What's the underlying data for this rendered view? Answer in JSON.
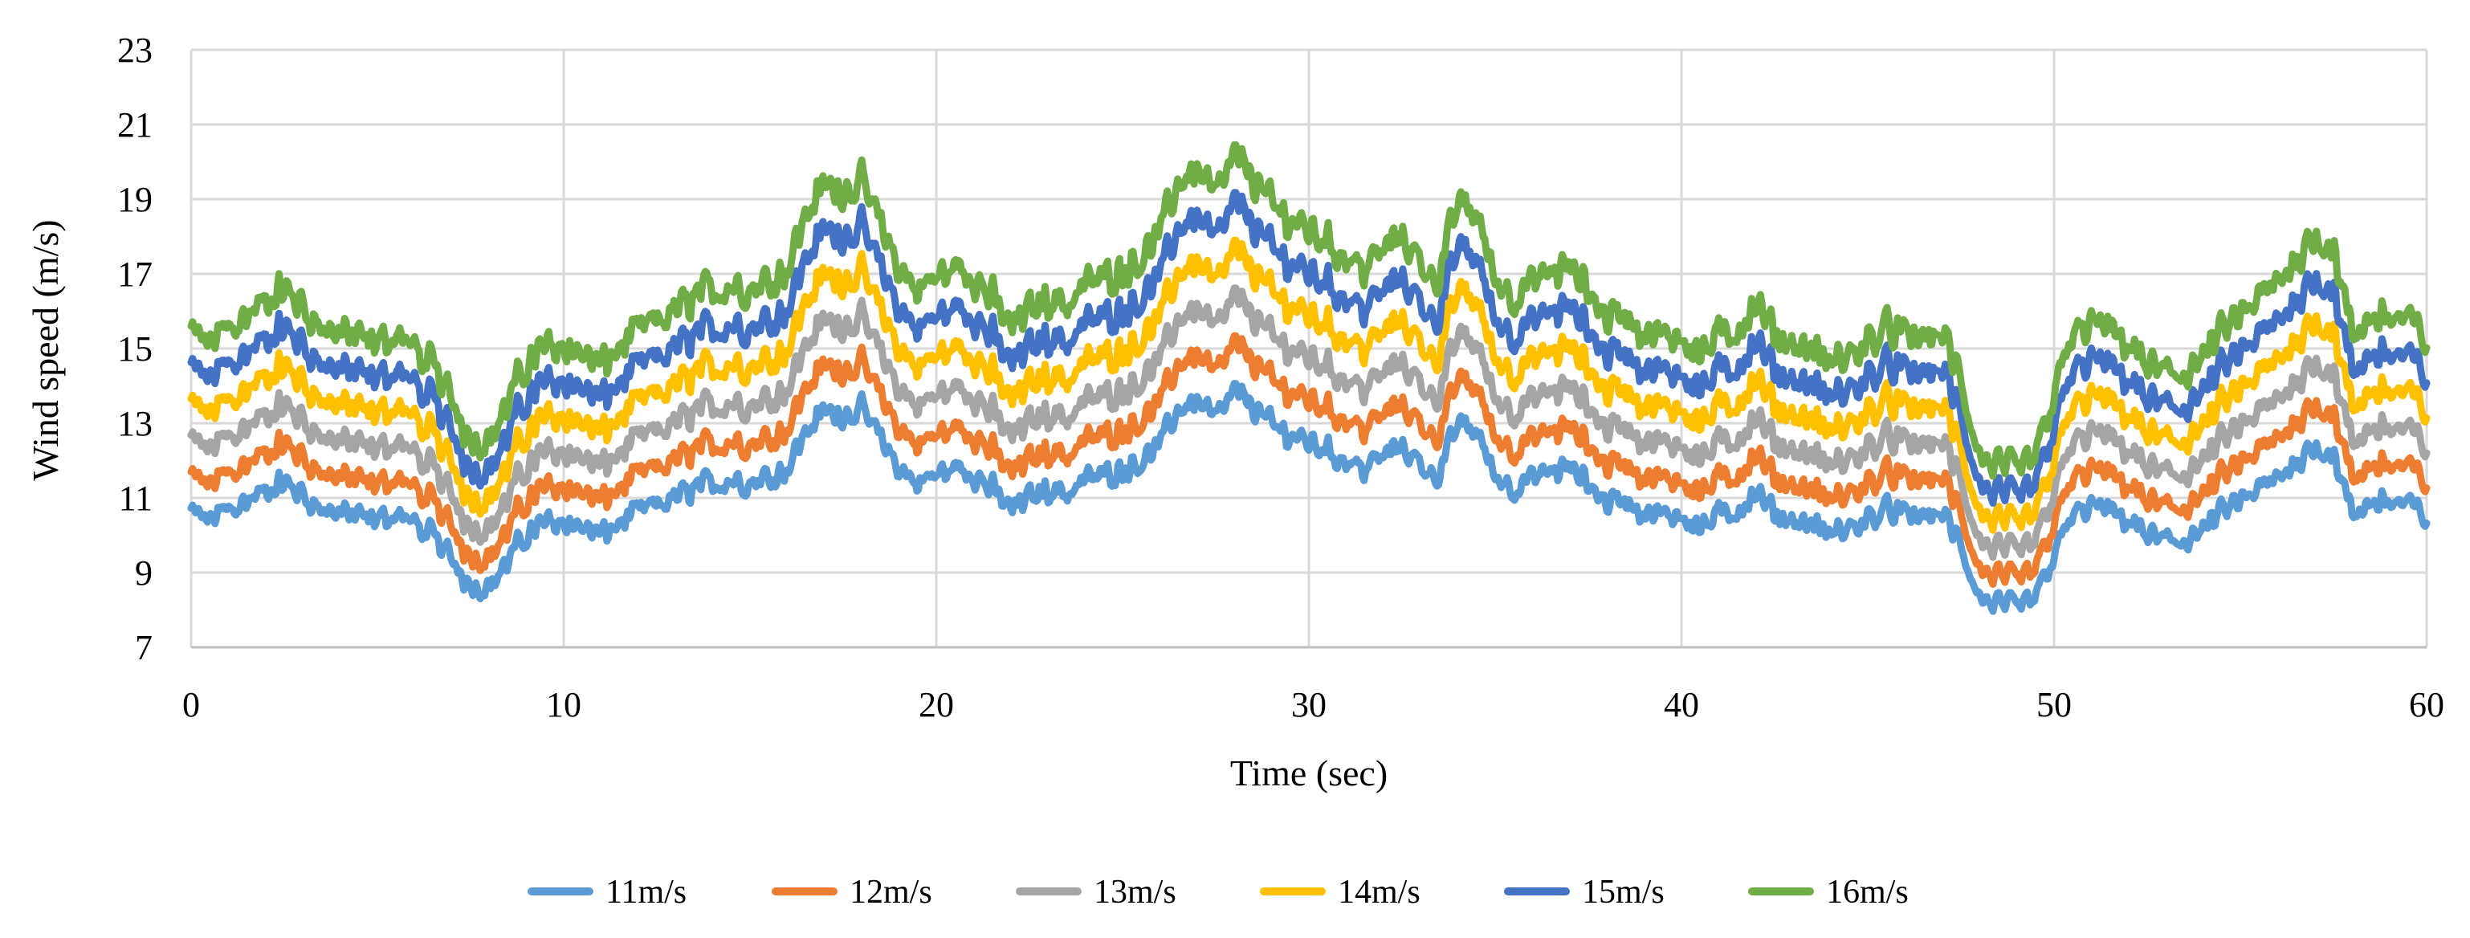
{
  "chart_data": {
    "type": "line",
    "title": "",
    "xlabel": "Time (sec)",
    "ylabel": "Wind speed (m/s)",
    "xlim": [
      0,
      60
    ],
    "ylim": [
      7,
      23
    ],
    "xticks": [
      "0",
      "10",
      "20",
      "30",
      "40",
      "50",
      "60"
    ],
    "yticks": [
      "7",
      "9",
      "11",
      "13",
      "15",
      "17",
      "19",
      "21",
      "23"
    ],
    "grid": true,
    "legend_position": "bottom",
    "base_profile": {
      "description": "mean wind speed of the 11m/s series; other series scale this profile by mean_speed/11",
      "x": [
        0,
        0.5,
        1,
        1.5,
        2,
        2.5,
        3,
        3.5,
        4,
        4.5,
        5,
        5.5,
        6,
        6.5,
        7,
        7.5,
        8,
        8.5,
        9,
        9.5,
        10,
        10.5,
        11,
        11.5,
        12,
        12.5,
        13,
        13.5,
        14,
        14.5,
        15,
        15.5,
        16,
        16.5,
        17,
        17.5,
        18,
        18.5,
        19,
        19.5,
        20,
        20.5,
        21,
        21.5,
        22,
        22.5,
        23,
        23.5,
        24,
        24.5,
        25,
        25.5,
        26,
        26.5,
        27,
        27.5,
        28,
        28.5,
        29,
        29.5,
        30,
        30.5,
        31,
        31.5,
        32,
        32.5,
        33,
        33.5,
        34,
        34.5,
        35,
        35.5,
        36,
        36.5,
        37,
        37.5,
        38,
        38.5,
        39,
        39.5,
        40,
        40.5,
        41,
        41.5,
        42,
        42.5,
        43,
        43.5,
        44,
        44.5,
        45,
        45.5,
        46,
        46.5,
        47,
        47.5,
        48,
        48.5,
        49,
        49.5,
        50,
        50.5,
        51,
        51.5,
        52,
        52.5,
        53,
        53.5,
        54,
        54.5,
        55,
        55.5,
        56,
        56.5,
        57,
        57.5,
        58,
        58.5,
        59,
        59.5,
        60
      ],
      "y": [
        10.6,
        10.4,
        10.7,
        10.9,
        11.2,
        11.4,
        11.1,
        10.7,
        10.6,
        10.5,
        10.4,
        10.6,
        10.3,
        9.9,
        9.4,
        8.7,
        8.6,
        9.3,
        10.0,
        10.3,
        10.4,
        10.2,
        10.0,
        10.3,
        10.6,
        10.8,
        11.0,
        11.2,
        11.4,
        11.5,
        11.4,
        11.6,
        11.8,
        12.8,
        13.3,
        13.3,
        13.3,
        12.6,
        11.8,
        11.4,
        11.6,
        11.8,
        11.7,
        11.2,
        10.7,
        11.0,
        11.3,
        11.1,
        11.5,
        11.6,
        11.8,
        12.0,
        12.4,
        13.4,
        13.6,
        13.1,
        13.8,
        13.5,
        12.9,
        12.7,
        12.5,
        12.3,
        12.0,
        11.8,
        12.1,
        12.4,
        11.9,
        11.6,
        13.0,
        12.8,
        11.6,
        11.3,
        11.5,
        11.7,
        11.8,
        11.4,
        10.9,
        11.0,
        10.6,
        10.5,
        10.6,
        10.2,
        10.5,
        10.7,
        11.1,
        10.6,
        10.4,
        10.3,
        10.0,
        10.2,
        10.4,
        10.7,
        10.5,
        10.5,
        10.6,
        9.7,
        8.3,
        8.1,
        8.0,
        8.3,
        9.5,
        10.5,
        10.8,
        10.6,
        10.4,
        10.0,
        9.8,
        9.9,
        10.1,
        10.6,
        10.9,
        11.2,
        11.5,
        12.0,
        12.4,
        12.2,
        10.5,
        10.9,
        10.9,
        10.8,
        10.5
      ]
    },
    "series": [
      {
        "name": "11m/s",
        "mean_speed": 11,
        "color": "#5b9bd5"
      },
      {
        "name": "12m/s",
        "mean_speed": 12,
        "color": "#ed7d31"
      },
      {
        "name": "13m/s",
        "mean_speed": 13,
        "color": "#a5a5a5"
      },
      {
        "name": "14m/s",
        "mean_speed": 14,
        "color": "#ffc000"
      },
      {
        "name": "15m/s",
        "mean_speed": 15,
        "color": "#4472c4"
      },
      {
        "name": "16m/s",
        "mean_speed": 16,
        "color": "#70ad47"
      }
    ]
  }
}
